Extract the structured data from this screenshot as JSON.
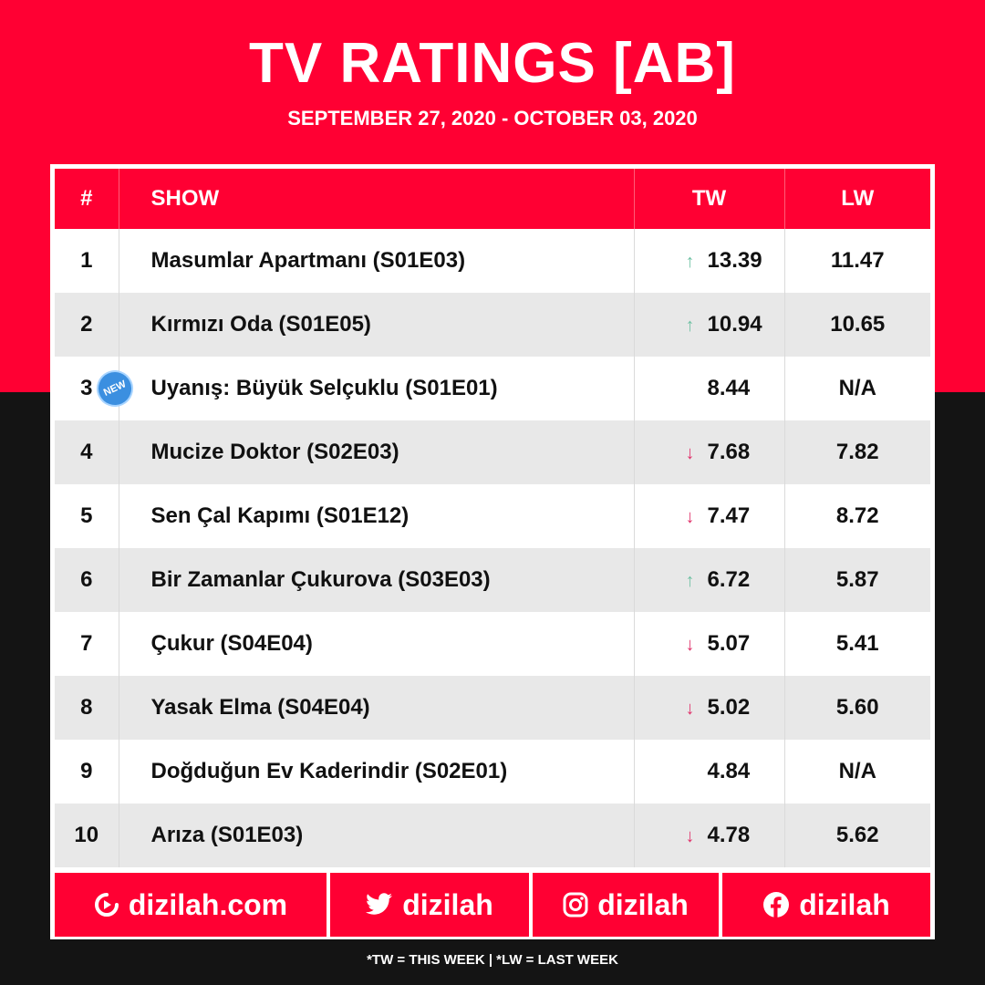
{
  "header": {
    "title": "TV RATINGS [AB]",
    "subtitle": "SEPTEMBER 27, 2020 - OCTOBER 03, 2020"
  },
  "table": {
    "columns": [
      "#",
      "SHOW",
      "TW",
      "LW"
    ],
    "rows": [
      {
        "rank": "1",
        "show": "Masumlar Apartmanı (S01E03)",
        "trend": "up",
        "tw": "13.39",
        "lw": "11.47"
      },
      {
        "rank": "2",
        "show": "Kırmızı Oda (S01E05)",
        "trend": "up",
        "tw": "10.94",
        "lw": "10.65"
      },
      {
        "rank": "3",
        "show": "Uyanış: Büyük Selçuklu (S01E01)",
        "trend": "none",
        "tw": "8.44",
        "lw": "N/A",
        "badge": "NEW"
      },
      {
        "rank": "4",
        "show": "Mucize Doktor (S02E03)",
        "trend": "down",
        "tw": "7.68",
        "lw": "7.82"
      },
      {
        "rank": "5",
        "show": "Sen Çal Kapımı (S01E12)",
        "trend": "down",
        "tw": "7.47",
        "lw": "8.72"
      },
      {
        "rank": "6",
        "show": "Bir Zamanlar Çukurova (S03E03)",
        "trend": "up",
        "tw": "6.72",
        "lw": "5.87"
      },
      {
        "rank": "7",
        "show": "Çukur (S04E04)",
        "trend": "down",
        "tw": "5.07",
        "lw": "5.41"
      },
      {
        "rank": "8",
        "show": "Yasak Elma (S04E04)",
        "trend": "down",
        "tw": "5.02",
        "lw": "5.60"
      },
      {
        "rank": "9",
        "show": "Doğduğun Ev Kaderindir (S02E01)",
        "trend": "none",
        "tw": "4.84",
        "lw": "N/A"
      },
      {
        "rank": "10",
        "show": "Arıza (S01E03)",
        "trend": "down",
        "tw": "4.78",
        "lw": "5.62"
      }
    ]
  },
  "footer": {
    "website": "dizilah.com",
    "twitter": "dizilah",
    "instagram": "dizilah",
    "facebook": "dizilah"
  },
  "note": "*TW = THIS WEEK | *LW = LAST WEEK",
  "colors": {
    "brand_red": "#ff0033",
    "dark_bg": "#141414",
    "trend_up": "#6fc1a3",
    "trend_down": "#e0336b",
    "new_badge": "#3b8fe0"
  }
}
